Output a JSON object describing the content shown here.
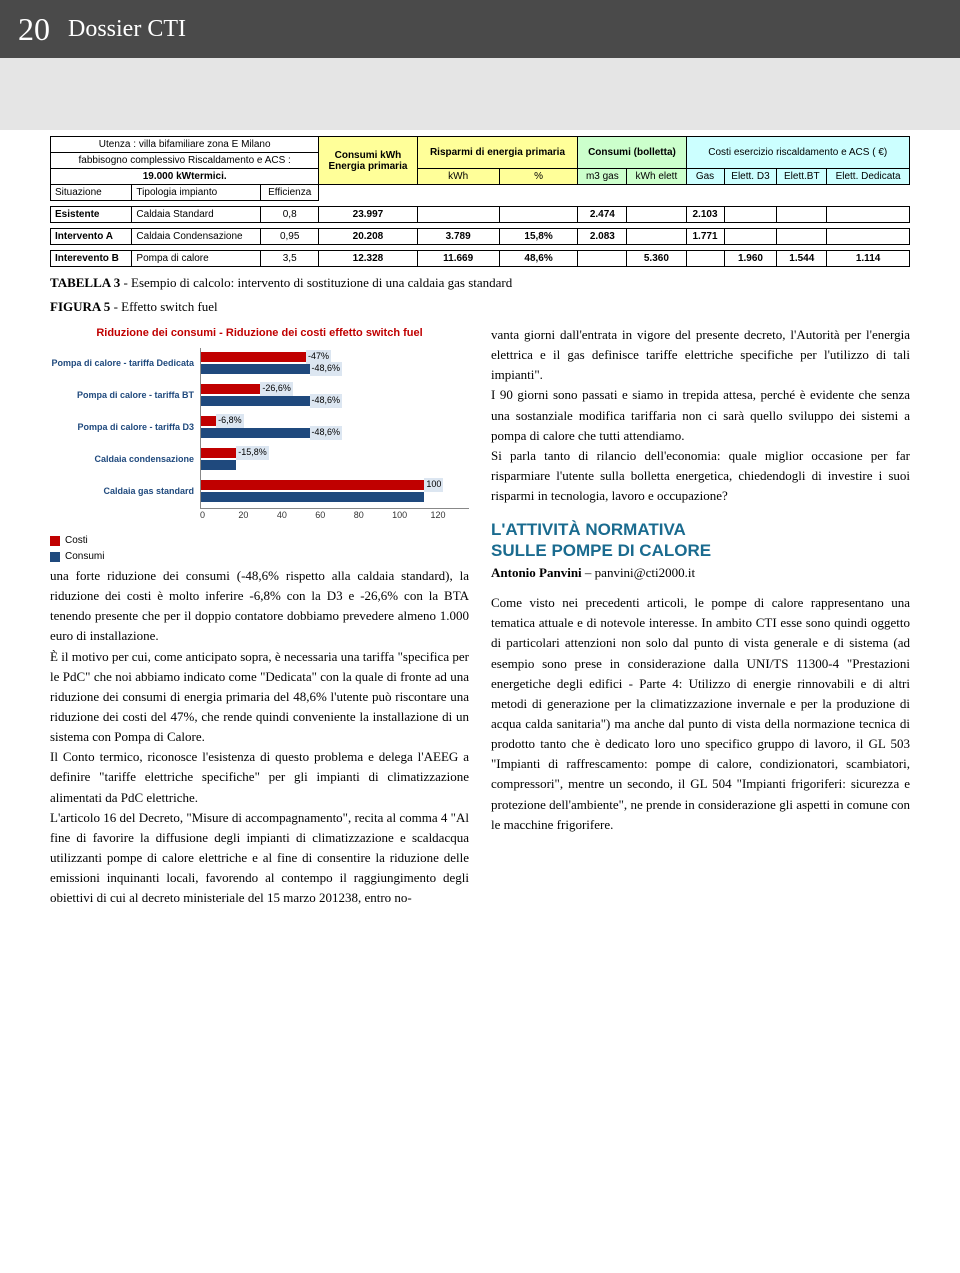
{
  "header": {
    "page_number": "20",
    "dossier": "Dossier CTI"
  },
  "table": {
    "intro_line1": "Utenza : villa bifamiliare zona E Milano",
    "intro_line2": "fabbisogno complessivo Riscaldamento e ACS :",
    "intro_line3": "19.000 kWtermici.",
    "col_situazione": "Situazione",
    "col_tipologia": "Tipologia impianto",
    "col_efficienza": "Efficienza",
    "col_consumi_kwh": "Consumi kWh",
    "col_energia_primaria": "Energia primaria",
    "col_risparmi": "Risparmi di energia primaria",
    "col_kwh": "kWh",
    "col_pct": "%",
    "col_consumi_bolletta": "Consumi  (bolletta)",
    "col_m3gas": "m3 gas",
    "col_kwhelett": "kWh elett",
    "col_costi": "Costi esercizio riscaldamento e ACS ( €)",
    "col_gas": "Gas",
    "col_elett_d3": "Elett. D3",
    "col_elett_bt": "Elett.BT",
    "col_elett_ded": "Elett. Dedicata",
    "row1": {
      "sit": "Esistente",
      "tip": "Caldaia Standard",
      "eff": "0,8",
      "ep": "23.997",
      "kwh": "",
      "pct": "",
      "m3": "2.474",
      "kwhe": "",
      "gas": "2.103",
      "d3": "",
      "bt": "",
      "ded": ""
    },
    "row2": {
      "sit": "Intervento A",
      "tip": "Caldaia Condensazione",
      "eff": "0,95",
      "ep": "20.208",
      "kwh": "3.789",
      "pct": "15,8%",
      "m3": "2.083",
      "kwhe": "",
      "gas": "1.771",
      "d3": "",
      "bt": "",
      "ded": ""
    },
    "row3": {
      "sit": "Interevento B",
      "tip": "Pompa di calore",
      "eff": "3,5",
      "ep": "12.328",
      "kwh": "11.669",
      "pct": "48,6%",
      "m3": "",
      "kwhe": "5.360",
      "gas": "",
      "d3": "1.960",
      "bt": "1.544",
      "ded": "1.114"
    }
  },
  "captions": {
    "tab3_lead": "TABELLA 3",
    "tab3_rest": " - Esempio di calcolo: intervento di sostituzione di una caldaia gas standard",
    "fig5_lead": "FIGURA 5",
    "fig5_rest": " - Effetto switch fuel"
  },
  "chart": {
    "title": "Riduzione dei consumi - Riduzione dei costi effetto switch fuel",
    "legend_costi": "Costi",
    "legend_consumi": "Consumi",
    "x_ticks": [
      "0",
      "20",
      "40",
      "60",
      "80",
      "100",
      "120"
    ],
    "x_max": 120,
    "colors": {
      "costi": "#c00000",
      "consumi": "#1f497d",
      "label_bg": "#dce6f1"
    },
    "rows": [
      {
        "label": "Pompa di calore - tariffa Dedicata",
        "costi": 47,
        "consumi": 48.6,
        "costi_lbl": "-47%",
        "consumi_lbl": "-48,6%"
      },
      {
        "label": "Pompa di calore - tariffa BT",
        "costi": 26.6,
        "consumi": 48.6,
        "costi_lbl": "-26,6%",
        "consumi_lbl": "-48,6%"
      },
      {
        "label": "Pompa di calore - tariffa D3",
        "costi": 6.8,
        "consumi": 48.6,
        "costi_lbl": "-6,8%",
        "consumi_lbl": "-48,6%"
      },
      {
        "label": "Caldaia condensazione",
        "costi": 15.8,
        "consumi": 15.8,
        "costi_lbl": "-15,8%",
        "consumi_lbl": ""
      },
      {
        "label": "Caldaia gas standard",
        "costi": 100,
        "consumi": 100,
        "costi_lbl": "100",
        "consumi_lbl": ""
      }
    ]
  },
  "body": {
    "left_p1": "una forte riduzione dei consumi (-48,6% rispetto alla caldaia standard), la riduzione dei costi è molto inferire -6,8% con la D3 e -26,6% con la BTA tenendo presente che per il doppio contatore dobbiamo prevedere almeno 1.000 euro di installazione.",
    "left_p2": "È il motivo per cui, come anticipato sopra, è necessaria una tariffa \"specifica per le PdC\" che noi abbiamo indicato come \"Dedicata\" con la quale di fronte ad una riduzione dei consumi di energia primaria del 48,6% l'utente può riscontare una riduzione dei costi del 47%, che rende quindi conveniente la installazione di un sistema con Pompa di Calore.",
    "left_p3": "Il Conto termico, riconosce l'esistenza di questo problema e delega l'AEEG a definire \"tariffe elettriche specifiche\" per gli impianti di climatizzazione alimentati da PdC elettriche.",
    "left_p4": "L'articolo 16 del Decreto, \"Misure di accompagnamento\", recita al comma 4 \"Al fine di favorire la diffusione degli impianti di climatizzazione e scaldacqua utilizzanti pompe di calore elettriche e al fine di consentire la riduzione delle emissioni inquinanti locali, favorendo al contempo il raggiungimento degli obiettivi di cui al decreto ministeriale del 15 marzo 201238, entro no-",
    "right_p1": "vanta giorni dall'entrata in vigore del presente decreto, l'Autorità per l'energia elettrica e il gas definisce tariffe elettriche specifiche per l'utilizzo di tali impianti\".",
    "right_p2": "I 90 giorni sono passati e siamo in trepida attesa, perché è evidente che senza una sostanziale modifica tariffaria non ci sarà quello sviluppo dei sistemi a pompa di calore che tutti attendiamo.",
    "right_p3": "Si parla tanto di rilancio dell'economia: quale miglior occasione per far risparmiare l'utente sulla bolletta energetica, chiedendogli di investire i suoi risparmi in tecnologia, lavoro e occupazione?",
    "h2_line1": "L'ATTIVITÀ NORMATIVA",
    "h2_line2": "SULLE POMPE DI CALORE",
    "author_name": "Antonio Panvini",
    "author_email": " – panvini@cti2000.it",
    "right_p4": "Come visto nei precedenti articoli, le pompe di calore rappresentano una tematica attuale e di notevole interesse. In ambito CTI esse sono quindi oggetto di particolari attenzioni non solo dal punto di vista generale e di sistema (ad esempio sono prese in considerazione dalla UNI/TS 11300-4 \"Prestazioni energetiche degli edifici - Parte 4: Utilizzo di energie rinnovabili e di altri metodi di generazione per la climatizzazione invernale e per la produzione di acqua calda sanitaria\") ma anche dal punto di vista della normazione tecnica di prodotto tanto che è dedicato loro uno specifico gruppo di lavoro, il GL 503 \"Impianti di raffrescamento: pompe di calore, condizionatori, scambiatori, compressori\", mentre un secondo, il GL 504 \"Impianti frigoriferi: sicurezza e protezione dell'ambiente\", ne prende in considerazione gli aspetti in comune con le macchine frigorifere."
  }
}
